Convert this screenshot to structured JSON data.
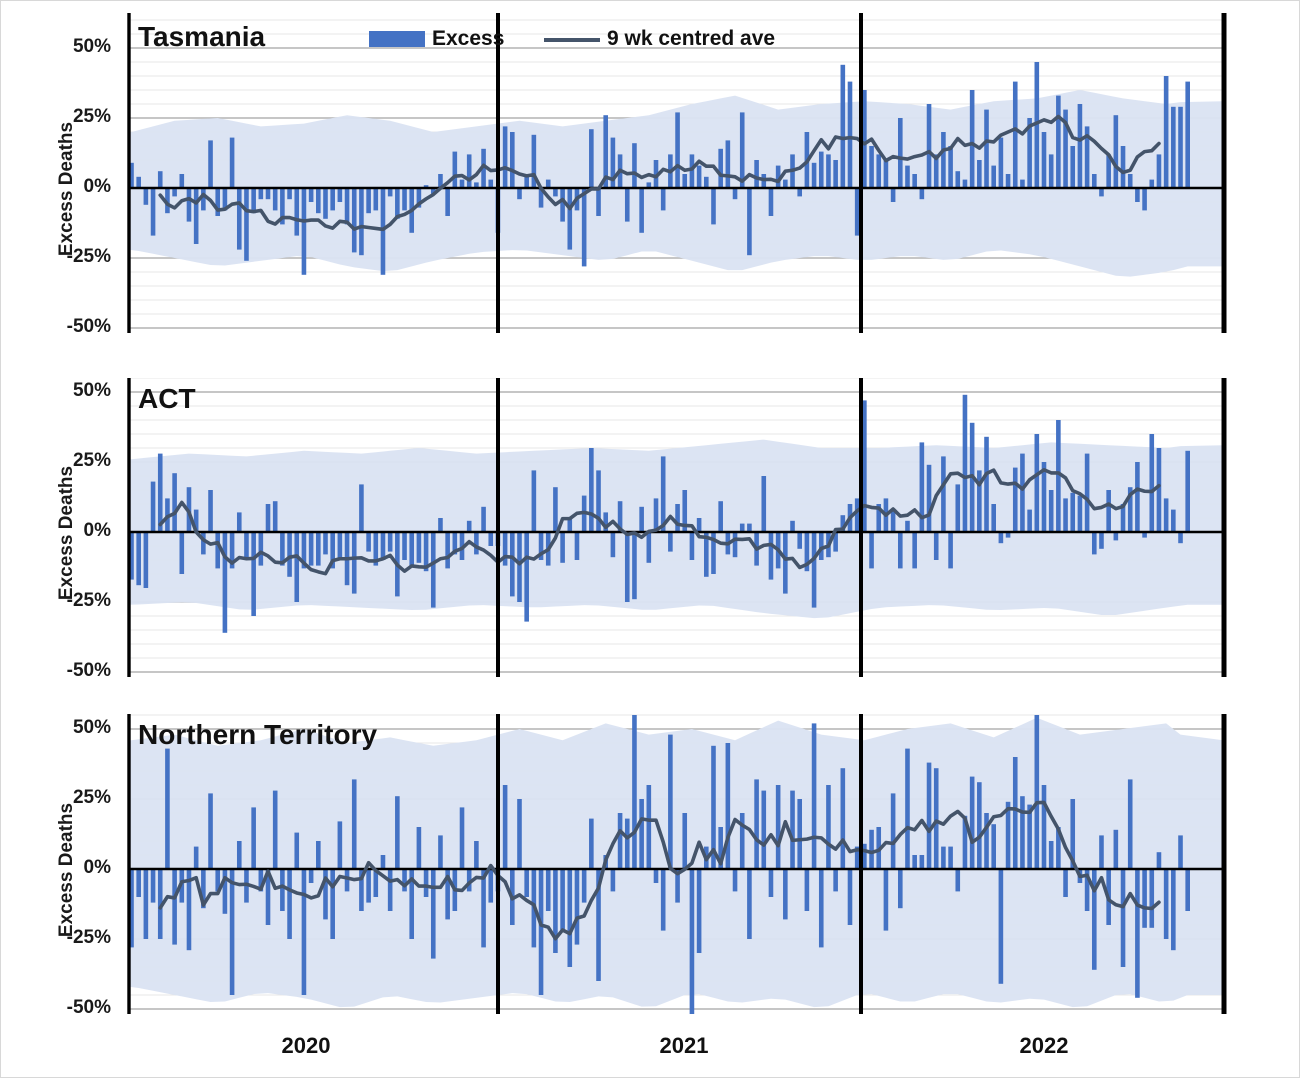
{
  "legend": {
    "excess_label": "Excess",
    "avg_label": "9 wk centred ave"
  },
  "y_axis": {
    "title": "Excess Deaths",
    "tick_labels": [
      "50%",
      "25%",
      "0%",
      "-25%",
      "-50%"
    ],
    "tick_values": [
      50,
      25,
      0,
      -25,
      -50
    ]
  },
  "x_axis": {
    "year_labels": [
      "2020",
      "2021",
      "2022"
    ],
    "weeks_per_year": [
      51,
      50,
      47
    ]
  },
  "colors": {
    "bar": "#4472c4",
    "avg_line": "#44546a",
    "band": "#dbe3f2",
    "grid_minor": "#e7e7e7",
    "grid_major": "#b3b3b3",
    "axis": "#000000"
  },
  "chart_data": [
    {
      "type": "bar",
      "title": "Tasmania",
      "ylabel": "Excess Deaths",
      "ylim": [
        -50,
        50
      ],
      "series_name": "Excess",
      "avg_series_name": "9 wk centred ave (9-week centered moving average of Excess)",
      "weekly_excess_pct": [
        9,
        4,
        -6,
        -17,
        6,
        -9,
        -3,
        5,
        -12,
        -20,
        -8,
        17,
        -10,
        -8,
        18,
        -22,
        -26,
        -9,
        -4,
        -4,
        -8,
        -13,
        -4,
        -17,
        -31,
        -5,
        -9,
        -11,
        -8,
        -5,
        -13,
        -23,
        -24,
        -9,
        -8,
        -31,
        -3,
        -11,
        -8,
        -16,
        -7,
        1,
        -2,
        5,
        -10,
        13,
        3,
        12,
        2,
        14,
        3,
        -16,
        22,
        20,
        -4,
        5,
        19,
        -7,
        3,
        -3,
        -12,
        -22,
        -8,
        -28,
        21,
        -10,
        26,
        18,
        12,
        -12,
        16,
        -16,
        2,
        10,
        -8,
        12,
        27,
        5,
        12,
        8,
        4,
        -13,
        14,
        17,
        -4,
        27,
        -24,
        10,
        5,
        -10,
        8,
        3,
        12,
        -3,
        20,
        9,
        13,
        12,
        10,
        44,
        38,
        -17,
        35,
        15,
        12,
        10,
        -5,
        25,
        8,
        5,
        -4,
        30,
        12,
        20,
        15,
        6,
        3,
        35,
        10,
        28,
        8,
        18,
        5,
        38,
        3,
        25,
        45,
        20,
        12,
        33,
        28,
        15,
        30,
        22,
        5,
        -3,
        12,
        26,
        15,
        5,
        -5,
        -8,
        3,
        12,
        40,
        29,
        29,
        38
      ],
      "band": {
        "weeks": [
          0,
          6,
          12,
          18,
          24,
          30,
          36,
          42,
          48,
          54,
          60,
          66,
          72,
          78,
          84,
          90,
          96,
          102,
          108,
          114,
          120,
          126,
          132,
          138,
          144,
          147
        ],
        "upper": [
          20,
          24,
          25,
          22,
          23,
          26,
          24,
          20,
          22,
          24,
          22,
          24,
          26,
          30,
          33,
          28,
          30,
          31,
          30,
          28,
          31,
          32,
          35,
          32,
          30,
          31
        ],
        "lower": [
          -22,
          -25,
          -28,
          -26,
          -24,
          -28,
          -30,
          -26,
          -23,
          -22,
          -24,
          -26,
          -22,
          -26,
          -30,
          -26,
          -24,
          -26,
          -24,
          -26,
          -22,
          -24,
          -28,
          -32,
          -30,
          -28
        ]
      }
    },
    {
      "type": "bar",
      "title": "ACT",
      "ylabel": "Excess Deaths",
      "ylim": [
        -50,
        50
      ],
      "series_name": "Excess",
      "avg_series_name": "9 wk centred ave (9-week centered moving average of Excess)",
      "weekly_excess_pct": [
        -17,
        -19,
        -20,
        18,
        28,
        12,
        21,
        -15,
        16,
        8,
        -8,
        15,
        -13,
        -36,
        -13,
        7,
        -10,
        -30,
        -12,
        10,
        11,
        -12,
        -16,
        -25,
        -13,
        -12,
        -12,
        -8,
        -13,
        -10,
        -19,
        -22,
        17,
        -7,
        -12,
        -10,
        -7,
        -23,
        -10,
        -12,
        -11,
        -14,
        -27,
        5,
        -13,
        -8,
        -10,
        4,
        -8,
        9,
        -5,
        -5,
        -12,
        -23,
        -25,
        -32,
        22,
        -10,
        -12,
        16,
        -11,
        5,
        -10,
        13,
        30,
        22,
        7,
        -9,
        11,
        -25,
        -24,
        9,
        -11,
        12,
        27,
        -7,
        10,
        15,
        -10,
        5,
        -16,
        -15,
        11,
        -8,
        -9,
        3,
        3,
        -12,
        20,
        -17,
        -13,
        -22,
        4,
        -6,
        -14,
        -27,
        -10,
        -9,
        -7,
        6,
        10,
        12,
        47,
        -13,
        10,
        12,
        8,
        -13,
        4,
        -13,
        32,
        24,
        -10,
        27,
        -13,
        17,
        49,
        39,
        22,
        34,
        10,
        -4,
        -2,
        23,
        28,
        8,
        35,
        25,
        15,
        40,
        12,
        14,
        13,
        28,
        -8,
        -6,
        15,
        -3,
        10,
        16,
        25,
        -2,
        35,
        30,
        12,
        8,
        -4,
        29
      ],
      "band": {
        "weeks": [
          0,
          8,
          16,
          24,
          32,
          40,
          48,
          56,
          64,
          72,
          80,
          88,
          96,
          104,
          112,
          120,
          128,
          136,
          144,
          147
        ],
        "upper": [
          26,
          28,
          27,
          29,
          28,
          30,
          28,
          29,
          30,
          29,
          31,
          33,
          30,
          30,
          31,
          30,
          32,
          31,
          30,
          31
        ],
        "lower": [
          -26,
          -25,
          -28,
          -26,
          -27,
          -28,
          -26,
          -27,
          -26,
          -28,
          -26,
          -29,
          -31,
          -27,
          -26,
          -28,
          -27,
          -30,
          -27,
          -26
        ]
      }
    },
    {
      "type": "bar",
      "title": "Northern Territory",
      "ylabel": "Excess Deaths",
      "ylim": [
        -50,
        50
      ],
      "series_name": "Excess",
      "avg_series_name": "9 wk centred ave (9-week centered moving average of Excess)",
      "weekly_excess_pct": [
        -28,
        -10,
        -25,
        -12,
        -25,
        43,
        -27,
        -12,
        -29,
        8,
        -14,
        27,
        -8,
        -16,
        -45,
        10,
        -12,
        22,
        -8,
        -20,
        28,
        -15,
        -25,
        13,
        -45,
        -5,
        10,
        -18,
        -25,
        17,
        -8,
        32,
        -15,
        -12,
        -10,
        5,
        -15,
        26,
        -8,
        -25,
        15,
        -10,
        -32,
        12,
        -18,
        -15,
        22,
        -8,
        10,
        -28,
        -12,
        -8,
        30,
        -20,
        25,
        -10,
        -28,
        -45,
        -15,
        -30,
        -22,
        -35,
        -27,
        -12,
        18,
        -40,
        5,
        -8,
        20,
        18,
        55,
        25,
        30,
        -5,
        -22,
        48,
        -12,
        20,
        -52,
        -30,
        8,
        44,
        15,
        45,
        -8,
        20,
        -25,
        32,
        28,
        -10,
        30,
        -18,
        28,
        25,
        -15,
        52,
        -28,
        30,
        -8,
        36,
        -20,
        8,
        9,
        14,
        15,
        -22,
        27,
        -14,
        43,
        5,
        5,
        38,
        36,
        8,
        8,
        -8,
        19,
        33,
        31,
        20,
        16,
        -41,
        24,
        40,
        26,
        23,
        55,
        30,
        10,
        15,
        -10,
        25,
        -5,
        -15,
        -36,
        12,
        -20,
        14,
        -35,
        32,
        -46,
        -21,
        -21,
        6,
        -25,
        -29,
        12,
        -15
      ],
      "band": {
        "weeks": [
          0,
          6,
          12,
          18,
          24,
          30,
          36,
          42,
          48,
          54,
          60,
          66,
          72,
          78,
          84,
          90,
          96,
          102,
          108,
          114,
          120,
          126,
          132,
          138,
          144,
          147
        ],
        "upper": [
          46,
          48,
          44,
          46,
          50,
          45,
          47,
          44,
          46,
          50,
          46,
          52,
          48,
          50,
          46,
          53,
          48,
          46,
          50,
          52,
          47,
          54,
          48,
          50,
          52,
          46
        ],
        "lower": [
          -42,
          -45,
          -48,
          -44,
          -46,
          -50,
          -45,
          -48,
          -46,
          -44,
          -48,
          -45,
          -50,
          -44,
          -48,
          -46,
          -50,
          -44,
          -48,
          -44,
          -48,
          -46,
          -50,
          -44,
          -48,
          -45
        ]
      }
    }
  ]
}
